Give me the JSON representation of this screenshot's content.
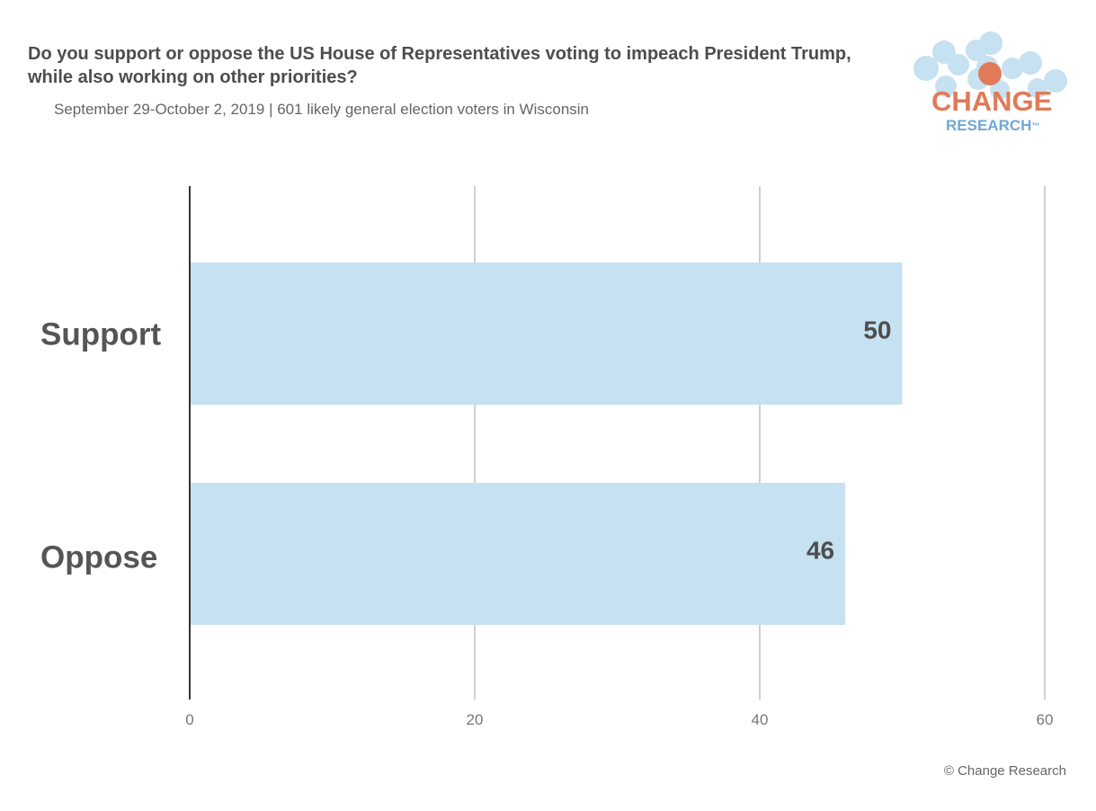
{
  "header": {
    "title": "Do you support or oppose the US House of Representatives voting to impeach President Trump, while also working on other priorities?",
    "subtitle": "September 29-October 2, 2019 | 601 likely general election voters in Wisconsin"
  },
  "logo": {
    "line1": "CHANGE",
    "line2": "RESEARCH",
    "mark": "™"
  },
  "footer": {
    "copyright": "© Change Research"
  },
  "colors": {
    "bar": "#c6e1f1",
    "grid": "#d0d0d0",
    "axis": "#333333",
    "text": "#555555",
    "logo_orange": "#e07a58",
    "logo_blue": "#6fa8d6"
  },
  "chart_data": {
    "type": "bar",
    "orientation": "horizontal",
    "categories": [
      "Support",
      "Oppose"
    ],
    "values": [
      50,
      46
    ],
    "xlim": [
      0,
      60
    ],
    "xticks": [
      0,
      20,
      40,
      60
    ],
    "grid": true,
    "data_labels": [
      "50",
      "46"
    ]
  }
}
